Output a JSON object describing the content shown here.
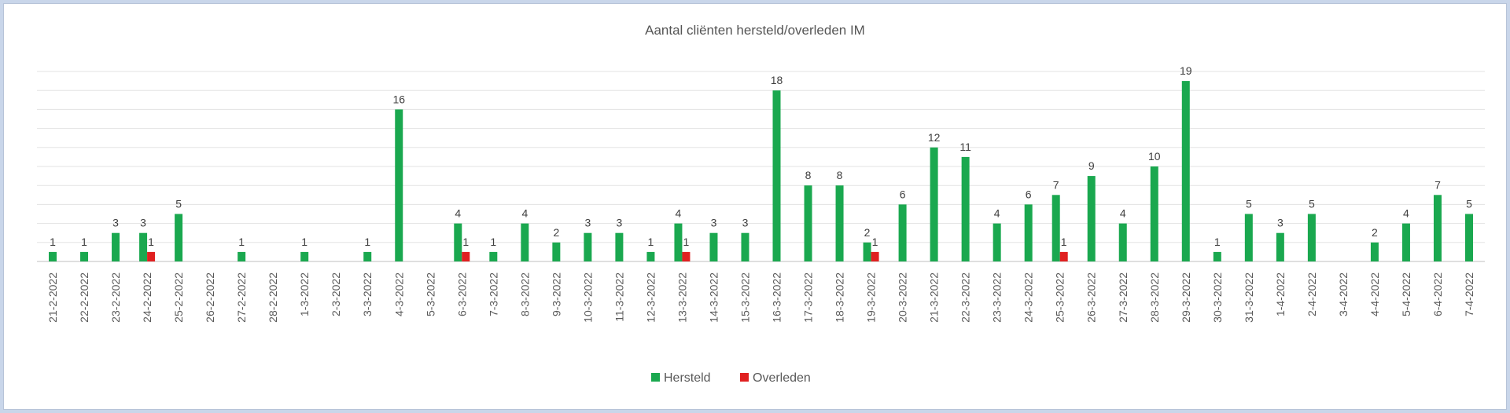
{
  "chart_data": {
    "type": "bar",
    "title": "Aantal cliënten hersteld/overleden IM",
    "xlabel": "",
    "ylabel": "",
    "ylim": [
      0,
      20
    ],
    "grid": true,
    "legend_position": "bottom",
    "categories": [
      "21-2-2022",
      "22-2-2022",
      "23-2-2022",
      "24-2-2022",
      "25-2-2022",
      "26-2-2022",
      "27-2-2022",
      "28-2-2022",
      "1-3-2022",
      "2-3-2022",
      "3-3-2022",
      "4-3-2022",
      "5-3-2022",
      "6-3-2022",
      "7-3-2022",
      "8-3-2022",
      "9-3-2022",
      "10-3-2022",
      "11-3-2022",
      "12-3-2022",
      "13-3-2022",
      "14-3-2022",
      "15-3-2022",
      "16-3-2022",
      "17-3-2022",
      "18-3-2022",
      "19-3-2022",
      "20-3-2022",
      "21-3-2022",
      "22-3-2022",
      "23-3-2022",
      "24-3-2022",
      "25-3-2022",
      "26-3-2022",
      "27-3-2022",
      "28-3-2022",
      "29-3-2022",
      "30-3-2022",
      "31-3-2022",
      "1-4-2022",
      "2-4-2022",
      "3-4-2022",
      "4-4-2022",
      "5-4-2022",
      "6-4-2022",
      "7-4-2022"
    ],
    "series": [
      {
        "name": "Hersteld",
        "color": "#1aa84f",
        "values": [
          1,
          1,
          3,
          3,
          5,
          null,
          1,
          null,
          1,
          null,
          1,
          16,
          null,
          4,
          1,
          4,
          2,
          3,
          3,
          1,
          4,
          3,
          3,
          18,
          8,
          8,
          2,
          6,
          12,
          11,
          4,
          6,
          7,
          9,
          4,
          10,
          19,
          1,
          5,
          3,
          5,
          null,
          2,
          4,
          7,
          5
        ]
      },
      {
        "name": "Overleden",
        "color": "#e02020",
        "values": [
          null,
          null,
          null,
          1,
          null,
          null,
          null,
          null,
          null,
          null,
          null,
          null,
          null,
          1,
          null,
          null,
          null,
          null,
          null,
          null,
          1,
          null,
          null,
          null,
          null,
          null,
          1,
          null,
          null,
          null,
          null,
          null,
          1,
          null,
          null,
          null,
          null,
          null,
          null,
          null,
          null,
          null,
          null,
          null,
          null,
          null
        ]
      }
    ],
    "data_labels": {
      "Hersteld": [
        "1",
        "1",
        "3",
        "3",
        "5",
        null,
        "1",
        null,
        "1",
        null,
        "1",
        "16",
        null,
        "4",
        "1",
        "4",
        "2",
        "3",
        "3",
        "1",
        "4",
        "3",
        "3",
        "18",
        "8",
        "8",
        "2",
        "6",
        "12",
        "11",
        "4",
        "6",
        "7",
        "9",
        "4",
        "10",
        "19",
        "1",
        "5",
        "3",
        "5",
        null,
        "2",
        "4",
        "7",
        "5"
      ],
      "Overleden": [
        null,
        null,
        null,
        "1",
        null,
        null,
        null,
        null,
        null,
        null,
        null,
        null,
        null,
        "1",
        null,
        null,
        null,
        null,
        null,
        null,
        "1",
        null,
        null,
        null,
        null,
        null,
        "1",
        null,
        null,
        null,
        null,
        null,
        "1",
        null,
        null,
        null,
        null,
        null,
        null,
        null,
        null,
        null,
        null,
        null,
        null,
        null
      ]
    }
  }
}
